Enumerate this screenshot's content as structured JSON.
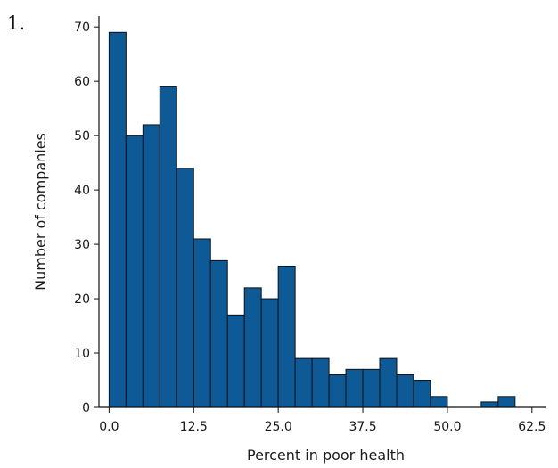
{
  "problem_number": "1.",
  "colors": {
    "bar_fill": "#0e5a96",
    "bar_stroke": "#111111",
    "axis": "#111111"
  },
  "chart_data": {
    "type": "bar",
    "title": "",
    "xlabel": "Percent in poor health",
    "ylabel": "Number of companies",
    "bin_width": 2.5,
    "bin_start": 0,
    "values": [
      69,
      50,
      52,
      59,
      44,
      31,
      27,
      17,
      22,
      20,
      26,
      9,
      9,
      6,
      7,
      7,
      9,
      6,
      5,
      2,
      0,
      0,
      1,
      2
    ],
    "xlim": [
      -1.5,
      64.5
    ],
    "ylim": [
      0,
      72
    ],
    "x_ticks": [
      0,
      12.5,
      25,
      37.5,
      50,
      62.5
    ],
    "x_tick_labels": [
      "0.0",
      "12.5",
      "25.0",
      "37.5",
      "50.0",
      "62.5"
    ],
    "y_ticks": [
      0,
      10,
      20,
      30,
      40,
      50,
      60,
      70
    ],
    "y_tick_labels": [
      "0",
      "10",
      "20",
      "30",
      "40",
      "50",
      "60",
      "70"
    ],
    "grid": false,
    "legend": "none"
  }
}
